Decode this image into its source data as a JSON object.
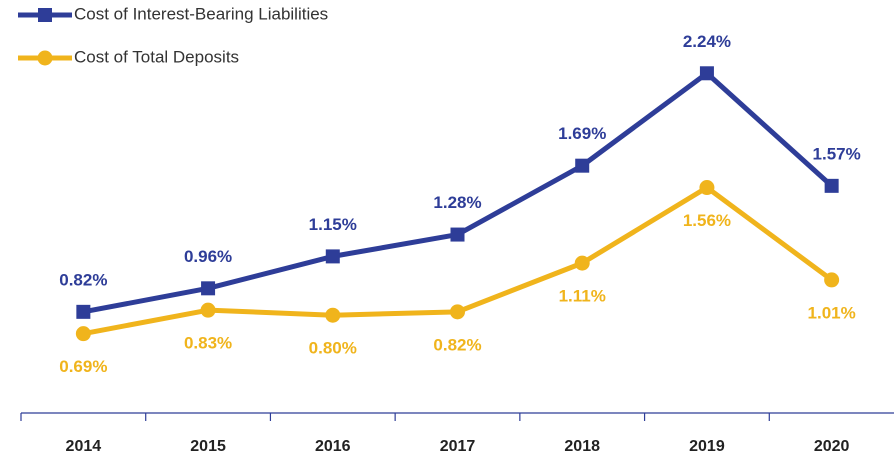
{
  "chart_data": {
    "type": "line",
    "categories": [
      "2014",
      "2015",
      "2016",
      "2017",
      "2018",
      "2019",
      "2020"
    ],
    "series": [
      {
        "name": "Cost of Interest-Bearing Liabilities",
        "color": "#2e3d98",
        "marker": "square",
        "values": [
          0.82,
          0.96,
          1.15,
          1.28,
          1.69,
          2.24,
          1.57
        ],
        "value_labels": [
          "0.82%",
          "0.96%",
          "1.15%",
          "1.28%",
          "1.69%",
          "2.24%",
          "1.57%"
        ]
      },
      {
        "name": "Cost of Total Deposits",
        "color": "#f0b41c",
        "marker": "circle",
        "values": [
          0.69,
          0.83,
          0.8,
          0.82,
          1.11,
          1.56,
          1.01
        ],
        "value_labels": [
          "0.69%",
          "0.83%",
          "0.80%",
          "0.82%",
          "1.11%",
          "1.56%",
          "1.01%"
        ]
      }
    ],
    "ylim": [
      0.2,
      2.45
    ],
    "legend": "top-left",
    "grid": false
  }
}
